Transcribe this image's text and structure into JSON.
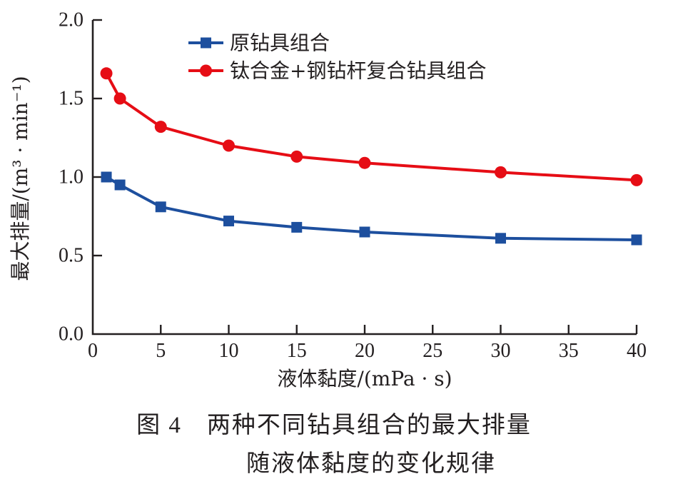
{
  "colors": {
    "blue": "#1d4f9e",
    "red": "#e60d15",
    "axis": "#231f20",
    "text": "#231f20",
    "background": "#ffffff"
  },
  "chart_data": {
    "type": "line",
    "title": "",
    "xlabel": "液体黏度/(mPa · s)",
    "ylabel": "最大排量/(m³ · min⁻¹)",
    "x": [
      1,
      2,
      5,
      10,
      15,
      20,
      30,
      40
    ],
    "series": [
      {
        "name": "原钻具组合",
        "marker": "square",
        "color_key": "blue",
        "values": [
          1.0,
          0.95,
          0.81,
          0.72,
          0.68,
          0.65,
          0.61,
          0.6
        ]
      },
      {
        "name": "钛合金+钢钻杆复合钻具组合",
        "marker": "circle",
        "color_key": "red",
        "values": [
          1.66,
          1.5,
          1.32,
          1.2,
          1.13,
          1.09,
          1.03,
          0.98
        ]
      }
    ],
    "xlim": [
      0,
      40
    ],
    "ylim": [
      0.0,
      2.0
    ],
    "x_ticks": [
      0,
      5,
      10,
      15,
      20,
      25,
      30,
      35,
      40
    ],
    "y_ticks": [
      "0.0",
      "0.5",
      "1.0",
      "1.5",
      "2.0"
    ],
    "grid": false,
    "legend_position": "top-left-inside"
  },
  "caption": {
    "line1": "图 4　两种不同钻具组合的最大排量",
    "line2": "随液体黏度的变化规律"
  }
}
